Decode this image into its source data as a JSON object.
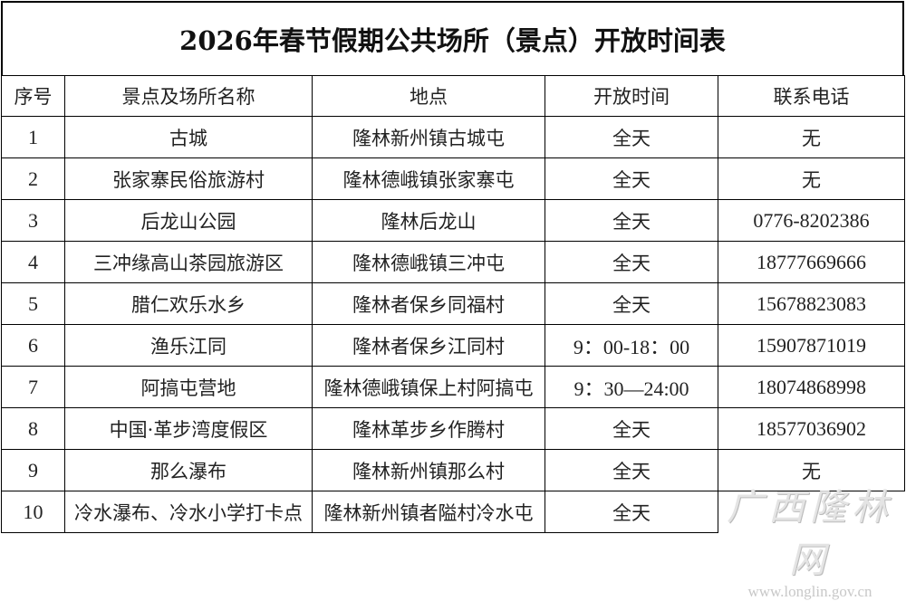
{
  "title": "2026年春节假期公共场所（景点）开放时间表",
  "headers": [
    "序号",
    "景点及场所名称",
    "地点",
    "开放时间",
    "联系电话"
  ],
  "rows": [
    [
      "1",
      "古城",
      "隆林新州镇古城屯",
      "全天",
      "无"
    ],
    [
      "2",
      "张家寨民俗旅游村",
      "隆林德峨镇张家寨屯",
      "全天",
      "无"
    ],
    [
      "3",
      "后龙山公园",
      "隆林后龙山",
      "全天",
      "0776-8202386"
    ],
    [
      "4",
      "三冲缘高山茶园旅游区",
      "隆林德峨镇三冲屯",
      "全天",
      "18777669666"
    ],
    [
      "5",
      "腊仁欢乐水乡",
      "隆林者保乡同福村",
      "全天",
      "15678823083"
    ],
    [
      "6",
      "渔乐江同",
      "隆林者保乡江同村",
      "9：00-18：00",
      "15907871019"
    ],
    [
      "7",
      "阿搞屯营地",
      "隆林德峨镇保上村阿搞屯",
      "9：30—24:00",
      "18074868998"
    ],
    [
      "8",
      "中国·革步湾度假区",
      "隆林革步乡作腾村",
      "全天",
      "18577036902"
    ],
    [
      "9",
      "那么瀑布",
      "隆林新州镇那么村",
      "全天",
      "无"
    ],
    [
      "10",
      "冷水瀑布、冷水小学打卡点",
      "隆林新州镇者隘村冷水屯",
      "全天",
      ""
    ]
  ],
  "watermark": {
    "text": "广西隆林网",
    "url": "www.longlin.gov.cn"
  }
}
